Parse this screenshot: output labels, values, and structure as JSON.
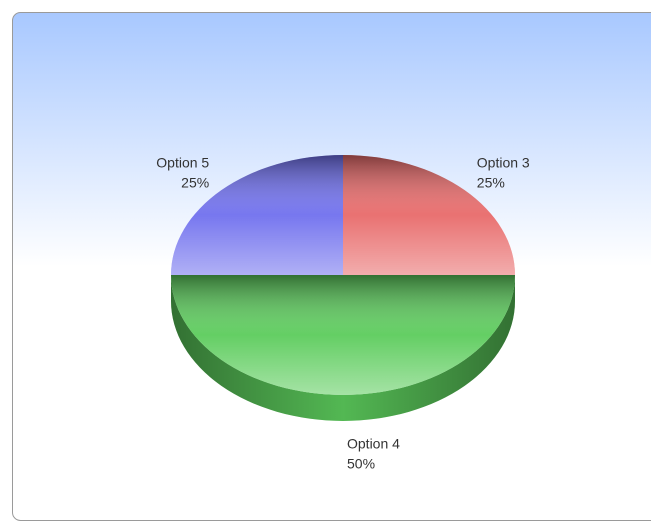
{
  "chart_data": {
    "type": "pie",
    "categories": [
      "Option 3",
      "Option 4",
      "Option 5"
    ],
    "values": [
      25,
      50,
      25
    ],
    "value_labels": [
      "25%",
      "50%",
      "25%"
    ],
    "colors": [
      "#e86a6a",
      "#5ccc5c",
      "#7070ee"
    ]
  }
}
